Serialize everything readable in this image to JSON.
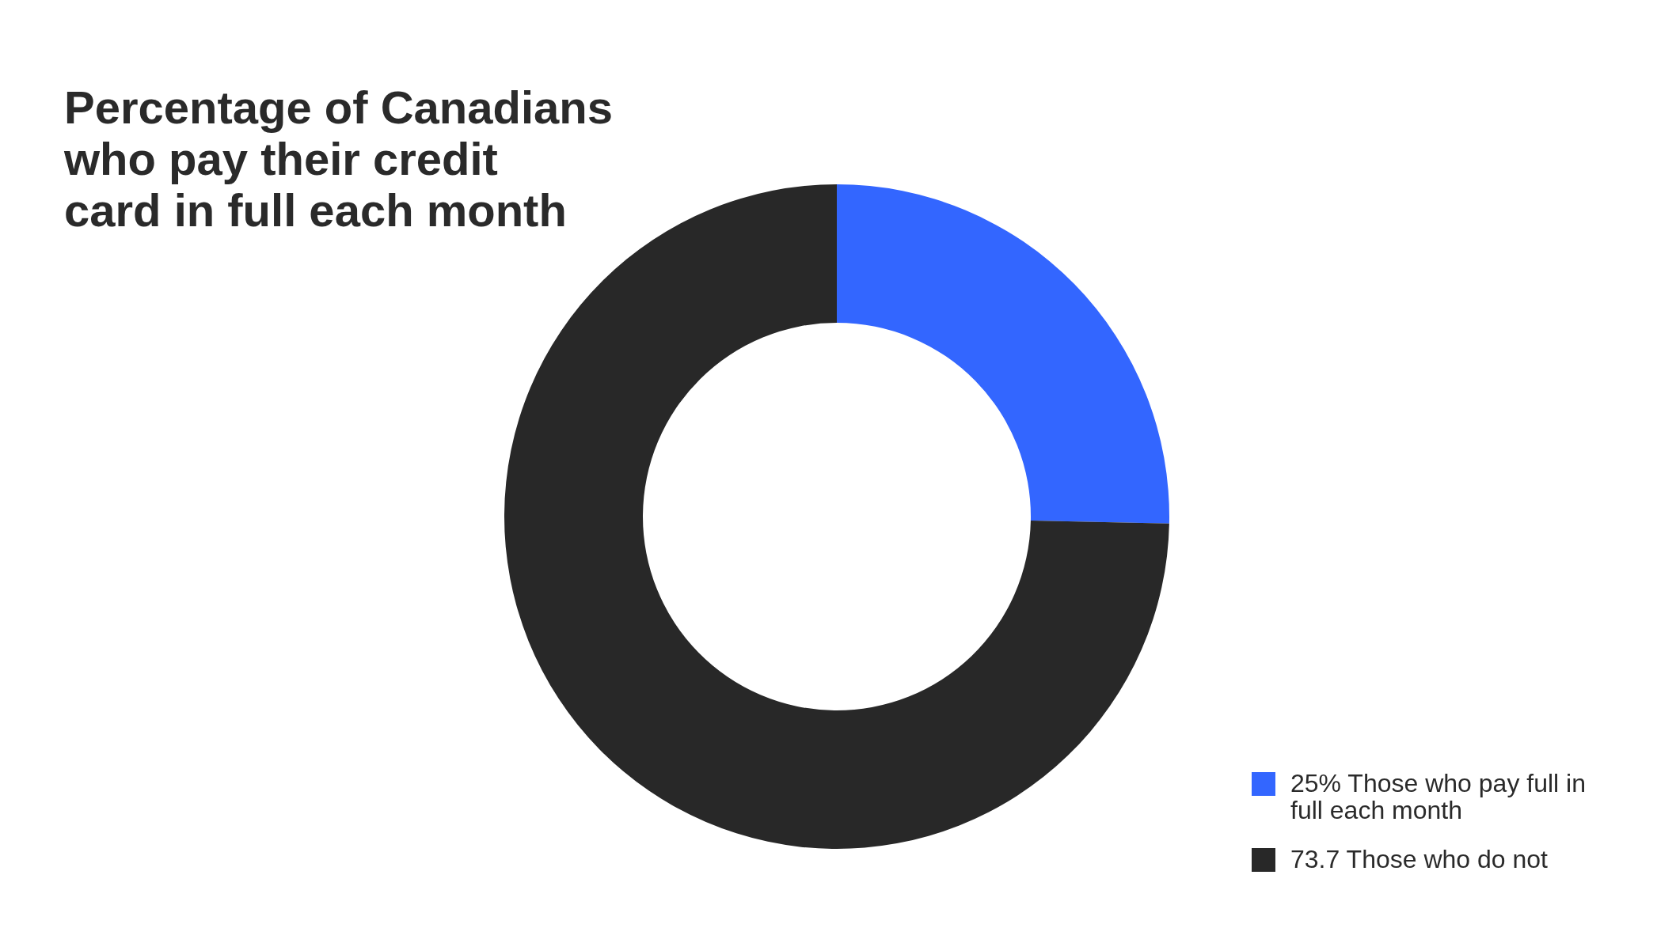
{
  "chart_data": {
    "type": "donut",
    "title": "Percentage of Canadians who pay their credit card in full each month",
    "categories": [
      "Those who pay full in full each month",
      "Those who do not"
    ],
    "values": [
      25,
      73.7
    ],
    "colors": [
      "#3366ff",
      "#282828"
    ],
    "value_labels": [
      "25%",
      "73.7"
    ],
    "legend": "bottom right"
  }
}
